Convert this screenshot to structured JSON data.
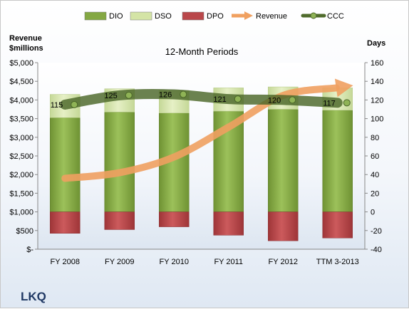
{
  "chart_data": {
    "type": "bar",
    "title": "12-Month Periods",
    "company": "LKQ",
    "categories": [
      "FY 2008",
      "FY 2009",
      "FY 2010",
      "FY 2011",
      "FY 2012",
      "TTM 3-2013"
    ],
    "legend": [
      {
        "name": "DIO",
        "color": "#84a843",
        "marker": "box"
      },
      {
        "name": "DSO",
        "color": "#d4e4a6",
        "marker": "box"
      },
      {
        "name": "DPO",
        "color": "#b9474a",
        "marker": "box"
      },
      {
        "name": "Revenue",
        "color": "#f0a060",
        "marker": "arrow"
      },
      {
        "name": "CCC",
        "color": "#4f6b2c",
        "marker": "line-dot"
      }
    ],
    "legend_position": "top",
    "left_axis": {
      "title_line1": "Revenue",
      "title_line2": "$millions",
      "range": [
        0,
        5000
      ],
      "ticks": [
        "$-",
        "$500",
        "$1,000",
        "$1,500",
        "$2,000",
        "$2,500",
        "$3,000",
        "$3,500",
        "$4,000",
        "$4,500",
        "$5,000"
      ]
    },
    "right_axis": {
      "title": "Days",
      "range": [
        -40,
        160
      ],
      "ticks": [
        "-40",
        "-20",
        "0",
        "20",
        "40",
        "60",
        "80",
        "100",
        "120",
        "140",
        "160"
      ]
    },
    "series": [
      {
        "name": "DIO",
        "axis": "right",
        "values": [
          101,
          107,
          106,
          108,
          110,
          109
        ]
      },
      {
        "name": "DSO",
        "axis": "right",
        "values": [
          25,
          25,
          24,
          25,
          24,
          24
        ]
      },
      {
        "name": "DPO",
        "axis": "right",
        "values": [
          -23,
          -19,
          -16,
          -25,
          -31,
          -28
        ]
      },
      {
        "name": "Revenue",
        "axis": "left",
        "values": [
          1900,
          2050,
          2470,
          3270,
          4120,
          4330
        ]
      },
      {
        "name": "CCC",
        "axis": "right",
        "values": [
          115,
          125,
          126,
          121,
          120,
          117
        ]
      }
    ],
    "ccc_labels": [
      "115",
      "125",
      "126",
      "121",
      "120",
      "117"
    ],
    "grid": false
  }
}
